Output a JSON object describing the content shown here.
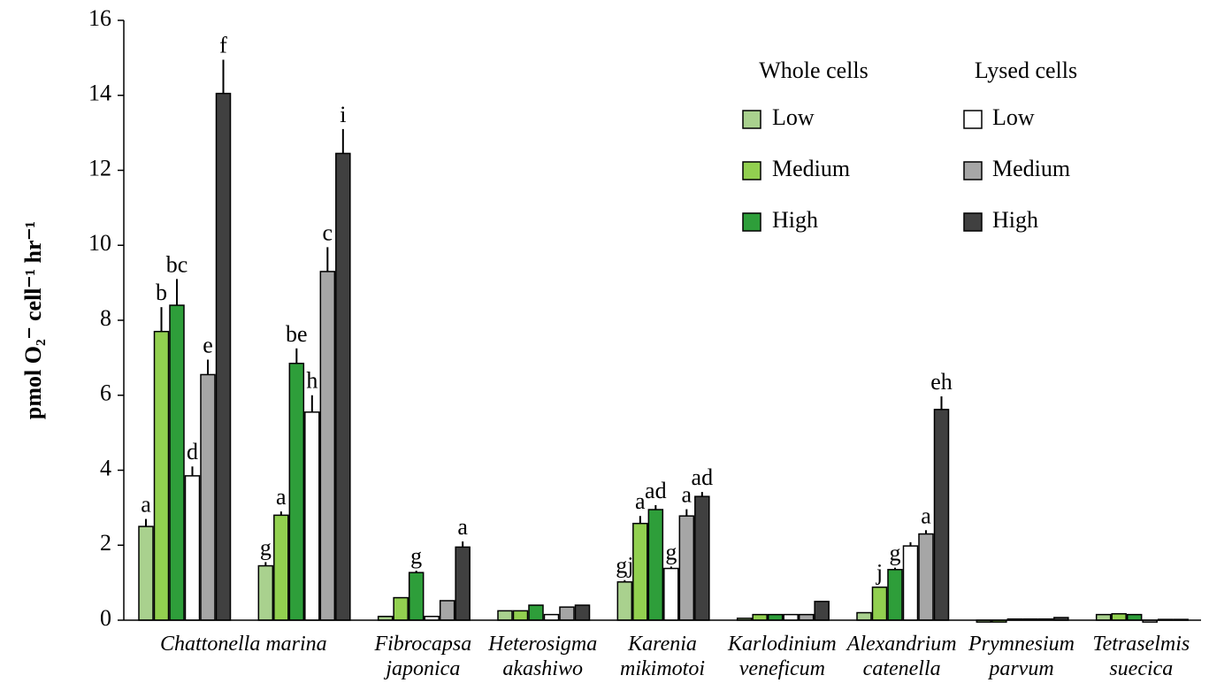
{
  "chart_data": {
    "type": "bar",
    "y_label": "pmol O₂⁻ cell⁻¹ hr⁻¹",
    "categories": [
      "Chattonella marina",
      null,
      "Fibrocapsa\njaponica",
      "Heterosigma\nakashiwo",
      "Karenia\nmikimotoi",
      "Karlodinium\nveneficum",
      "Alexandrium\ncatenella",
      "Prymnesium\nparvum",
      "Tetraselmis\nsuecica"
    ],
    "legend_groups": [
      "Whole cells",
      "Lysed cells"
    ],
    "series": [
      {
        "name": "Low",
        "group": 0,
        "color": "#a9d18e",
        "values": [
          2.5,
          1.45,
          0.1,
          0.25,
          1.02,
          0.05,
          0.2,
          -0.05,
          0.15
        ],
        "errors": [
          0.2,
          0.1,
          0,
          0,
          0.05,
          0,
          0,
          0,
          0
        ],
        "labels": [
          "a",
          "g",
          null,
          null,
          "gj",
          null,
          null,
          null,
          null
        ]
      },
      {
        "name": "Medium",
        "group": 0,
        "color": "#92d050",
        "values": [
          7.7,
          2.8,
          0.6,
          0.25,
          2.58,
          0.15,
          0.88,
          -0.05,
          0.17
        ],
        "errors": [
          0.65,
          0.1,
          0,
          0,
          0.2,
          0,
          0,
          0,
          0
        ],
        "labels": [
          "b",
          "a",
          null,
          null,
          "a",
          null,
          "j",
          null,
          null
        ]
      },
      {
        "name": "High",
        "group": 0,
        "color": "#2e9e3a",
        "values": [
          8.4,
          6.85,
          1.27,
          0.4,
          2.95,
          0.15,
          1.35,
          0.03,
          0.15
        ],
        "errors": [
          0.7,
          0.4,
          0.05,
          0,
          0.12,
          0,
          0.05,
          0,
          0
        ],
        "labels": [
          "bc",
          "be",
          "g",
          null,
          "ad",
          null,
          "g",
          null,
          null
        ]
      },
      {
        "name": "Low",
        "group": 1,
        "color": "#ffffff",
        "values": [
          3.85,
          5.55,
          0.1,
          0.15,
          1.38,
          0.15,
          1.98,
          0.03,
          -0.05
        ],
        "errors": [
          0.25,
          0.45,
          0,
          0,
          0.05,
          0,
          0.1,
          0,
          0
        ],
        "labels": [
          "d",
          "h",
          null,
          null,
          "g",
          null,
          null,
          null,
          null
        ]
      },
      {
        "name": "Medium",
        "group": 1,
        "color": "#a6a6a6",
        "values": [
          6.55,
          9.3,
          0.52,
          0.35,
          2.78,
          0.15,
          2.3,
          0.03,
          0.02
        ],
        "errors": [
          0.4,
          0.65,
          0,
          0,
          0.18,
          0,
          0.1,
          0,
          0
        ],
        "labels": [
          "e",
          "c",
          null,
          null,
          "a",
          null,
          "a",
          null,
          null
        ]
      },
      {
        "name": "High",
        "group": 1,
        "color": "#404040",
        "values": [
          14.05,
          12.45,
          1.95,
          0.4,
          3.3,
          0.5,
          5.62,
          0.07,
          0.02
        ],
        "errors": [
          0.9,
          0.65,
          0.15,
          0,
          0.12,
          0,
          0.35,
          0,
          0
        ],
        "labels": [
          "f",
          "i",
          "a",
          null,
          "ad",
          null,
          "eh",
          null,
          null
        ]
      }
    ],
    "ylim": [
      0,
      16
    ],
    "yticks": [
      0,
      2,
      4,
      6,
      8,
      10,
      12,
      14,
      16
    ],
    "grid": false
  }
}
